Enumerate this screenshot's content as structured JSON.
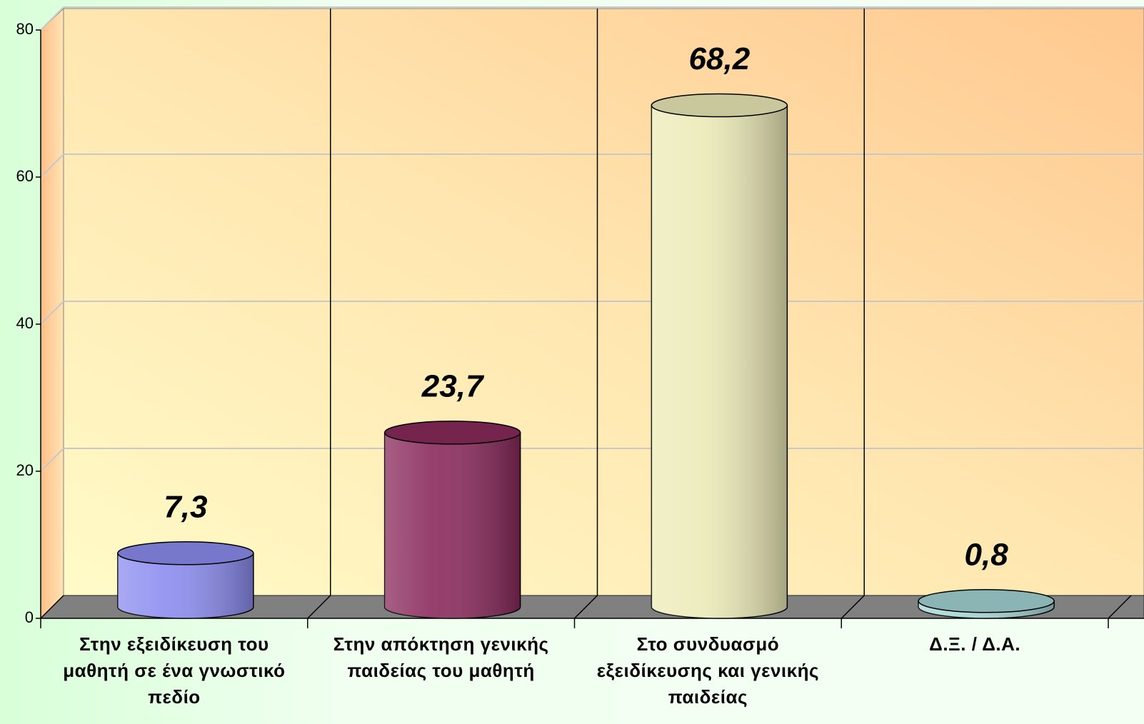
{
  "chart_data": {
    "type": "bar",
    "categories": [
      "Στην εξειδίκευση του μαθητή σε ένα γνωστικό πεδίο",
      "Στην απόκτηση γενικής παιδείας του μαθητή",
      "Στο συνδυασμό εξειδίκευσης και γενικής παιδείας",
      "Δ.Ξ. / Δ.Α."
    ],
    "values": [
      7.3,
      23.7,
      68.2,
      0.8
    ],
    "value_labels": [
      "7,3",
      "23,7",
      "68,2",
      "0,8"
    ],
    "colors": [
      "#8c8cf0",
      "#8a2a5c",
      "#ecebb8",
      "#a4d4d4"
    ],
    "ylim": [
      0,
      80
    ],
    "yticks": [
      0,
      20,
      40,
      60,
      80
    ],
    "grid": true
  }
}
